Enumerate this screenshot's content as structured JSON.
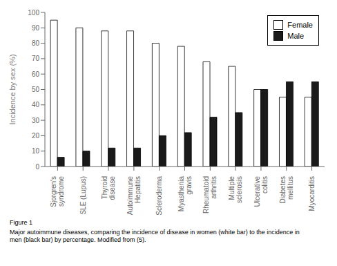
{
  "chart_data": {
    "type": "bar",
    "categories": [
      "Sjorgren's\nsyndrome",
      "SLE (Lupus)",
      "Thyroid\ndisease",
      "Autoimmune\nHepatitis",
      "Scleroderma",
      "Myasthenia\ngravis",
      "Rheumatoid\narthritis",
      "Multiple\nsclerosis",
      "Ulcerative\ncolitis",
      "Diabetes\nmellitus",
      "Myocarditis"
    ],
    "series": [
      {
        "name": "Female",
        "color": "#ffffff",
        "values": [
          95,
          90,
          88,
          88,
          80,
          78,
          68,
          65,
          50,
          45,
          45
        ]
      },
      {
        "name": "Male",
        "color": "#1a1a1a",
        "values": [
          6,
          10,
          12,
          12,
          20,
          22,
          32,
          35,
          50,
          55,
          55
        ]
      }
    ],
    "y_label": "Incidence by sex (%)",
    "ylim": [
      0,
      100
    ],
    "yticks": [
      0,
      10,
      20,
      30,
      40,
      50,
      60,
      70,
      80,
      90,
      100
    ],
    "legend": "upper right",
    "annotations": [
      "Figure 1",
      "Major autoimmune diseases, comparing the incidence of disease in women (white bar) to the incidence in\nmen (black bar) by percentage. Modified from (5)."
    ]
  }
}
